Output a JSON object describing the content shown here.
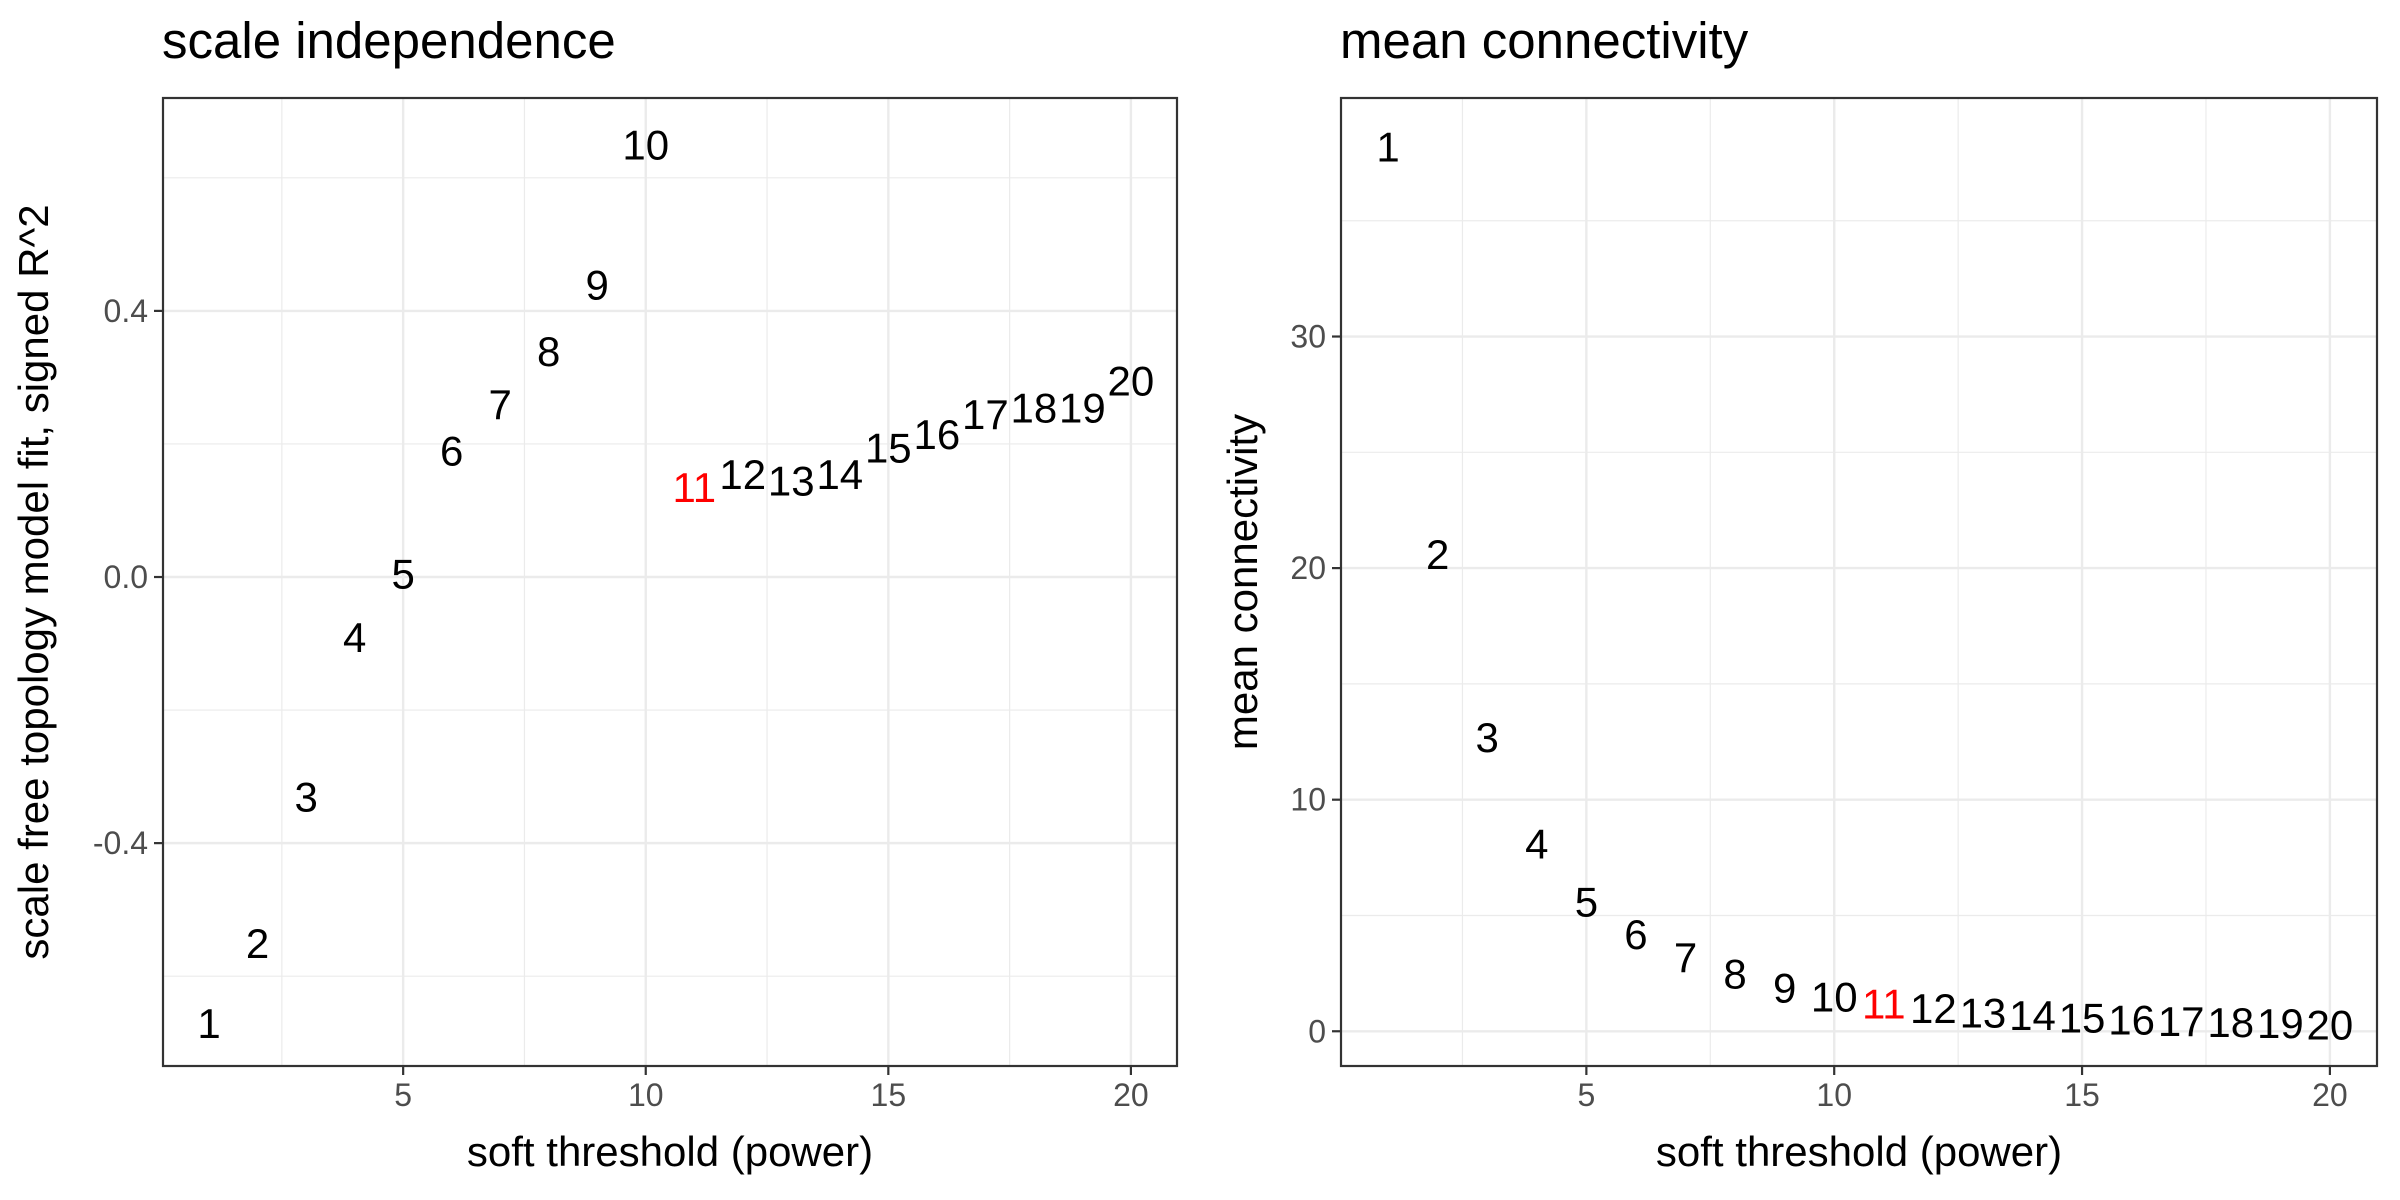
{
  "chart_data": [
    {
      "type": "scatter",
      "title": "scale independence",
      "xlabel": "soft threshold (power)",
      "ylabel": "scale free topology model fit, signed R^2",
      "xlim": [
        0.05,
        20.95
      ],
      "ylim": [
        -0.735,
        0.72
      ],
      "xticks": [
        5,
        10,
        15,
        20
      ],
      "xtick_labels": [
        "5",
        "10",
        "15",
        "20"
      ],
      "yticks": [
        -0.4,
        0.0,
        0.4
      ],
      "ytick_labels": [
        "-0.4",
        "0.0",
        "0.4"
      ],
      "grid": true,
      "x": [
        1,
        2,
        3,
        4,
        5,
        6,
        7,
        8,
        9,
        10,
        11,
        12,
        13,
        14,
        15,
        16,
        17,
        18,
        19,
        20
      ],
      "y": [
        -0.67,
        -0.55,
        -0.33,
        -0.09,
        0.005,
        0.19,
        0.26,
        0.34,
        0.44,
        0.65,
        0.135,
        0.155,
        0.145,
        0.155,
        0.195,
        0.215,
        0.245,
        0.255,
        0.255,
        0.295
      ],
      "labels": [
        "1",
        "2",
        "3",
        "4",
        "5",
        "6",
        "7",
        "8",
        "9",
        "10",
        "11",
        "12",
        "13",
        "14",
        "15",
        "16",
        "17",
        "18",
        "19",
        "20"
      ],
      "highlight_index": 10,
      "colors": {
        "default": "#000000",
        "highlight": "#ff0000"
      }
    },
    {
      "type": "scatter",
      "title": "mean connectivity",
      "xlabel": "soft threshold (power)",
      "ylabel": "mean connectivity",
      "xlim": [
        0.05,
        20.95
      ],
      "ylim": [
        -1.5,
        40.3
      ],
      "xticks": [
        5,
        10,
        15,
        20
      ],
      "xtick_labels": [
        "5",
        "10",
        "15",
        "20"
      ],
      "yticks": [
        0,
        10,
        20,
        30
      ],
      "ytick_labels": [
        "0",
        "10",
        "20",
        "30"
      ],
      "grid": true,
      "x": [
        1,
        2,
        3,
        4,
        5,
        6,
        7,
        8,
        9,
        10,
        11,
        12,
        13,
        14,
        15,
        16,
        17,
        18,
        19,
        20
      ],
      "y": [
        38.2,
        20.6,
        12.7,
        8.1,
        5.6,
        4.2,
        3.2,
        2.5,
        1.9,
        1.5,
        1.2,
        1.0,
        0.8,
        0.7,
        0.6,
        0.5,
        0.45,
        0.4,
        0.35,
        0.3
      ],
      "labels": [
        "1",
        "2",
        "3",
        "4",
        "5",
        "6",
        "7",
        "8",
        "9",
        "10",
        "11",
        "12",
        "13",
        "14",
        "15",
        "16",
        "17",
        "18",
        "19",
        "20"
      ],
      "highlight_index": 10,
      "colors": {
        "default": "#000000",
        "highlight": "#ff0000"
      }
    }
  ]
}
